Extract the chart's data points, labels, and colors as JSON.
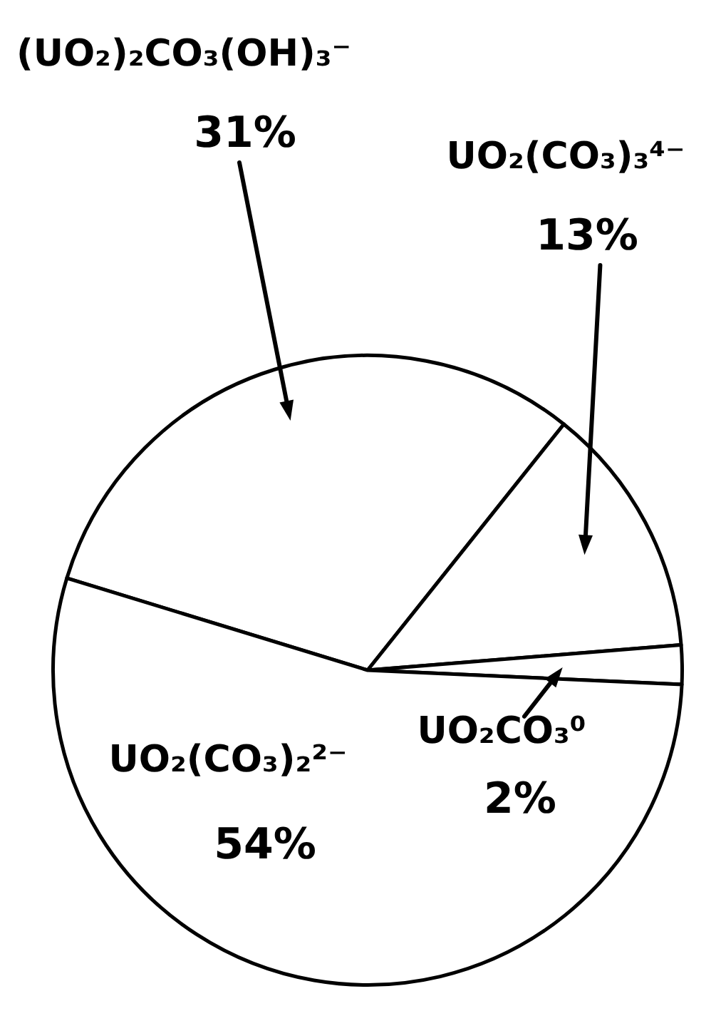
{
  "chart_data": {
    "type": "pie",
    "categories": [
      "(UO₂)₂CO₃(OH)₃⁻",
      "UO₂(CO₃)₃⁴⁻",
      "UO₂CO₃⁰",
      "UO₂(CO₃)₂²⁻"
    ],
    "values": [
      31,
      13,
      2,
      54
    ],
    "colors": [
      "#ffffff",
      "#ffffff",
      "#ffffff",
      "#ffffff"
    ],
    "value_labels": [
      "31%",
      "13%",
      "2%",
      "54%"
    ]
  }
}
